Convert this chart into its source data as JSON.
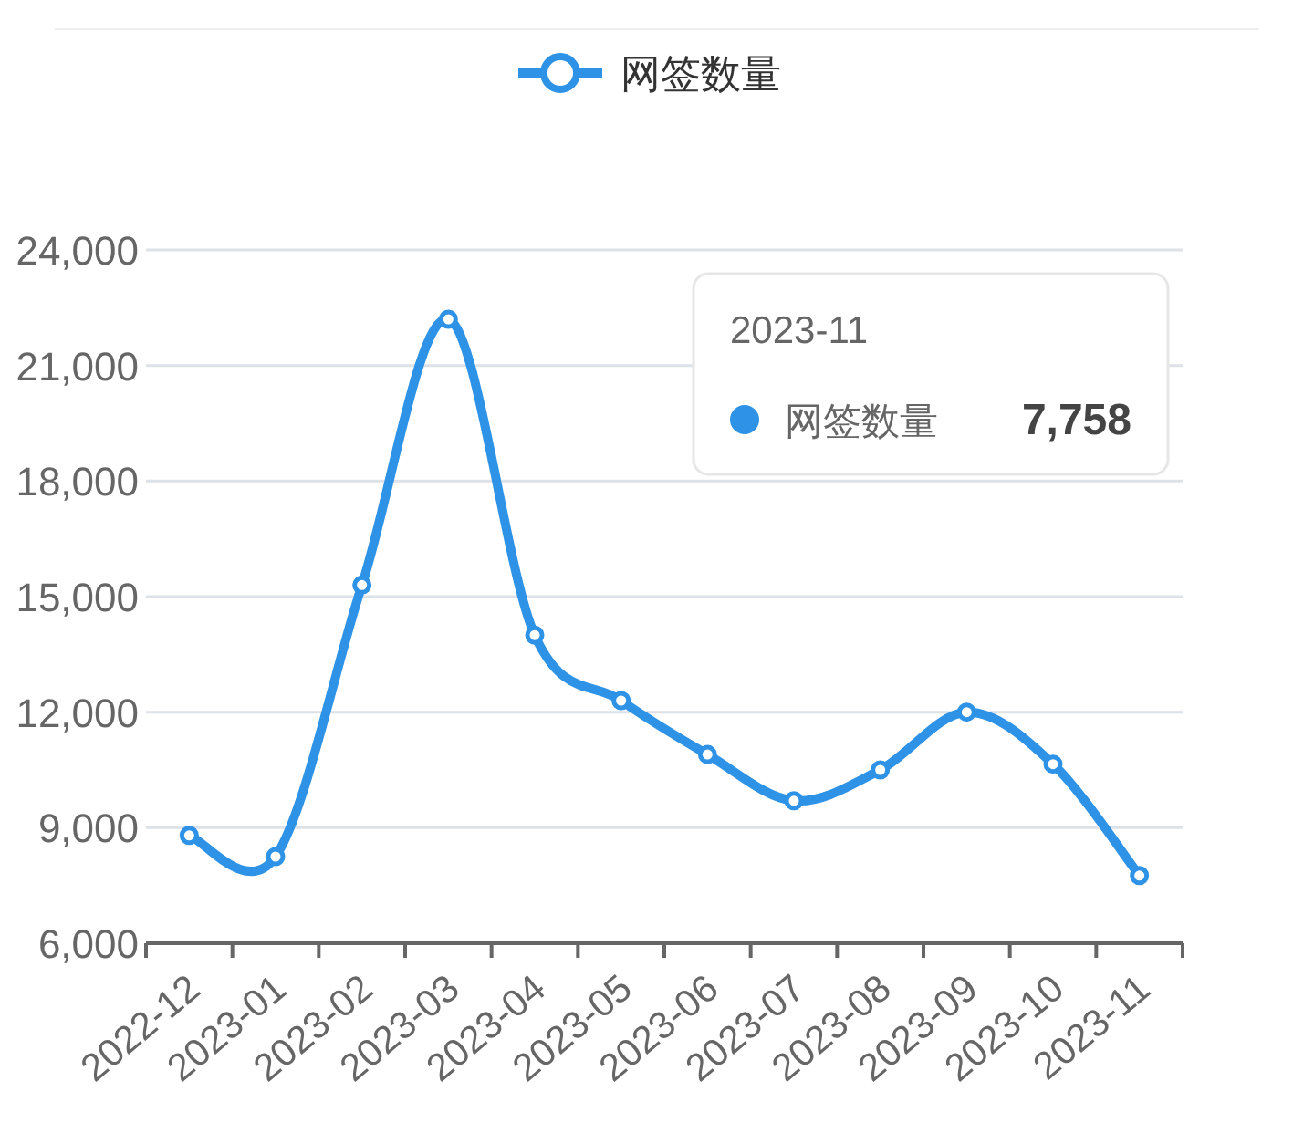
{
  "chart_data": {
    "type": "line",
    "categories": [
      "2022-12",
      "2023-01",
      "2023-02",
      "2023-03",
      "2023-04",
      "2023-05",
      "2023-06",
      "2023-07",
      "2023-08",
      "2023-09",
      "2023-10",
      "2023-11"
    ],
    "series": [
      {
        "name": "网签数量",
        "color": "#2e93e6",
        "values": [
          8800,
          8250,
          15300,
          22200,
          14000,
          12300,
          10900,
          9700,
          10500,
          12000,
          10650,
          7758
        ]
      }
    ],
    "ylim": [
      6000,
      24000
    ],
    "yticks": [
      {
        "value": 6000,
        "label": "6,000"
      },
      {
        "value": 9000,
        "label": "9,000"
      },
      {
        "value": 12000,
        "label": "12,000"
      },
      {
        "value": 15000,
        "label": "15,000"
      },
      {
        "value": 18000,
        "label": "18,000"
      },
      {
        "value": 21000,
        "label": "21,000"
      },
      {
        "value": 24000,
        "label": "24,000"
      }
    ],
    "grid": "y",
    "legend": "top",
    "marker": "circle",
    "line_style": "solid",
    "annotations": [
      "2023-11",
      "7,758"
    ]
  }
}
